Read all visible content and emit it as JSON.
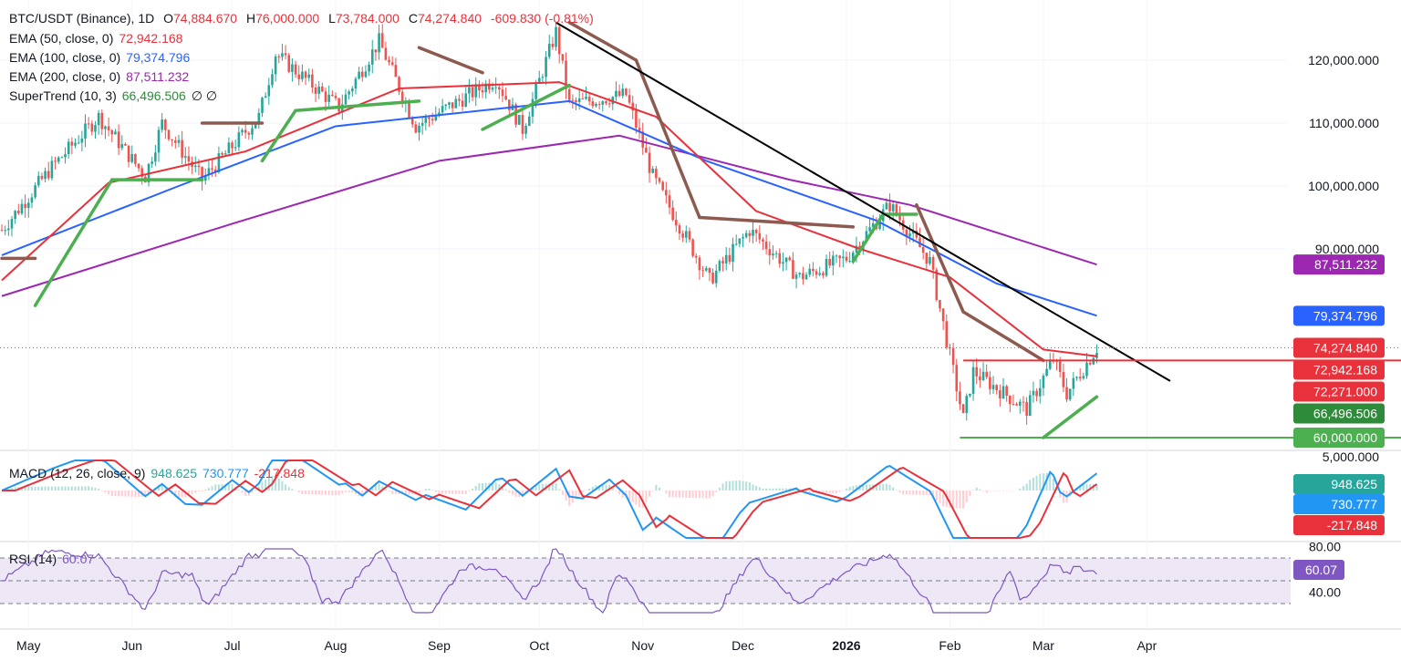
{
  "header": {
    "symbol": "BTC/USDT (Binance), 1D",
    "open_label": "O",
    "open": "74,884.670",
    "high_label": "H",
    "high": "76,000.000",
    "low_label": "L",
    "low": "73,784.000",
    "close_label": "C",
    "close": "74,274.840",
    "change": "-609.830 (-0.81%)"
  },
  "indicators": [
    {
      "label": "EMA (50, close, 0)",
      "value": "72,942.168",
      "color": "#e8313a"
    },
    {
      "label": "EMA (100, close, 0)",
      "value": "79,374.796",
      "color": "#2962ff"
    },
    {
      "label": "EMA (200, close, 0)",
      "value": "87,511.232",
      "color": "#9c27b0"
    },
    {
      "label": "SuperTrend (10, 3)",
      "value": "66,496.506",
      "color": "#2e8b3a",
      "extra": "∅ ∅"
    }
  ],
  "macd": {
    "label": "MACD (12, 26, close, 9)",
    "values": [
      "948.625",
      "730.777",
      "-217.848"
    ],
    "axis_label": "5,000.000"
  },
  "rsi": {
    "label": "RSI (14)",
    "value": "60.07",
    "axis_labels": [
      "80.00",
      "40.00"
    ]
  },
  "colors": {
    "up": "#26a69a",
    "down": "#ef5350",
    "ema50": "#e8313a",
    "ema100": "#2962ff",
    "ema200": "#9c27b0",
    "st_up": "#4caf50",
    "st_down": "#8d5a50",
    "trend": "#000000",
    "rsi": "#7e57c2",
    "rsi_band": "#ede7f6",
    "hline": "#e8313a",
    "support": "#4caf50"
  },
  "chart_data": {
    "type": "candlestick",
    "price_axis": {
      "ticks": [
        120000,
        110000,
        100000,
        90000
      ],
      "tick_labels": [
        "120,000.000",
        "110,000.000",
        "100,000.000",
        "90,000.000"
      ]
    },
    "x_axis": {
      "labels": [
        "May",
        "Jun",
        "Jul",
        "Aug",
        "Sep",
        "Oct",
        "Nov",
        "Dec",
        "2026",
        "Feb",
        "Mar",
        "Apr"
      ]
    },
    "price_tags": [
      {
        "text": "87,511.232",
        "value": 87511.232,
        "color": "#9c27b0"
      },
      {
        "text": "79,374.796",
        "value": 79374.796,
        "color": "#2962ff"
      },
      {
        "text": "74,274.840",
        "value": 74274.84,
        "color": "#e8313a"
      },
      {
        "text": "72,942.168",
        "value": 72942.168,
        "color": "#e8313a"
      },
      {
        "text": "72,271.000",
        "value": 72271,
        "color": "#e8313a"
      },
      {
        "text": "66,496.506",
        "value": 66496.506,
        "color": "#2e8b3a"
      },
      {
        "text": "60,000.000",
        "value": 60000,
        "color": "#4caf50"
      }
    ],
    "macd_tags": [
      {
        "text": "948.625",
        "color": "#26a69a"
      },
      {
        "text": "730.777",
        "color": "#2196f3"
      },
      {
        "text": "-217.848",
        "color": "#e8313a"
      }
    ],
    "rsi_tag": {
      "text": "60.07",
      "color": "#7e57c2"
    },
    "levels": {
      "resistance": 72271,
      "support": 60000,
      "last": 74274.84
    },
    "trendline": {
      "start": {
        "date": "2025-10-06",
        "price": 126000
      },
      "end": {
        "date": "2026-04-08",
        "price": 69000
      }
    },
    "closes": [
      {
        "date": "2025-04-23",
        "close": 93000
      },
      {
        "date": "2025-05-08",
        "close": 103000
      },
      {
        "date": "2025-05-22",
        "close": 111000
      },
      {
        "date": "2025-06-05",
        "close": 101500
      },
      {
        "date": "2025-06-10",
        "close": 110000
      },
      {
        "date": "2025-06-22",
        "close": 101000
      },
      {
        "date": "2025-07-09",
        "close": 111000
      },
      {
        "date": "2025-07-14",
        "close": 121000
      },
      {
        "date": "2025-08-02",
        "close": 112500
      },
      {
        "date": "2025-08-14",
        "close": 123000
      },
      {
        "date": "2025-08-25",
        "close": 109500
      },
      {
        "date": "2025-09-18",
        "close": 117000
      },
      {
        "date": "2025-09-26",
        "close": 109000
      },
      {
        "date": "2025-10-06",
        "close": 124500
      },
      {
        "date": "2025-10-10",
        "close": 113000
      },
      {
        "date": "2025-10-27",
        "close": 114500
      },
      {
        "date": "2025-11-04",
        "close": 101500
      },
      {
        "date": "2025-11-21",
        "close": 85000
      },
      {
        "date": "2025-12-03",
        "close": 93000
      },
      {
        "date": "2025-12-18",
        "close": 85500
      },
      {
        "date": "2026-01-01",
        "close": 88500
      },
      {
        "date": "2026-01-14",
        "close": 97000
      },
      {
        "date": "2026-01-26",
        "close": 88000
      },
      {
        "date": "2026-02-05",
        "close": 63000
      },
      {
        "date": "2026-02-08",
        "close": 70500
      },
      {
        "date": "2026-02-24",
        "close": 64500
      },
      {
        "date": "2026-03-04",
        "close": 72500
      },
      {
        "date": "2026-03-08",
        "close": 67000
      },
      {
        "date": "2026-03-17",
        "close": 74274.84
      }
    ],
    "ema50": [
      {
        "date": "2025-04-23",
        "close": 85000
      },
      {
        "date": "2025-05-25",
        "close": 100500
      },
      {
        "date": "2025-07-05",
        "close": 105500
      },
      {
        "date": "2025-08-20",
        "close": 115500
      },
      {
        "date": "2025-10-07",
        "close": 116500
      },
      {
        "date": "2025-11-05",
        "close": 111000
      },
      {
        "date": "2025-12-05",
        "close": 96000
      },
      {
        "date": "2026-01-05",
        "close": 90000
      },
      {
        "date": "2026-02-01",
        "close": 85500
      },
      {
        "date": "2026-03-01",
        "close": 74000
      },
      {
        "date": "2026-03-17",
        "close": 72942.168
      }
    ],
    "ema100": [
      {
        "date": "2025-04-23",
        "close": 89000
      },
      {
        "date": "2025-06-15",
        "close": 100000
      },
      {
        "date": "2025-08-01",
        "close": 109500
      },
      {
        "date": "2025-10-10",
        "close": 113500
      },
      {
        "date": "2025-11-20",
        "close": 104000
      },
      {
        "date": "2026-01-10",
        "close": 94500
      },
      {
        "date": "2026-02-15",
        "close": 84500
      },
      {
        "date": "2026-03-17",
        "close": 79374.796
      }
    ],
    "ema200": [
      {
        "date": "2025-04-23",
        "close": 82500
      },
      {
        "date": "2025-07-01",
        "close": 94000
      },
      {
        "date": "2025-09-01",
        "close": 104000
      },
      {
        "date": "2025-10-25",
        "close": 108000
      },
      {
        "date": "2025-12-15",
        "close": 101000
      },
      {
        "date": "2026-01-20",
        "close": 97000
      },
      {
        "date": "2026-03-17",
        "close": 87511.232
      }
    ],
    "supertrend": [
      {
        "date": "2025-04-23",
        "value": 88500,
        "trend": "down"
      },
      {
        "date": "2025-05-03",
        "value": 88500,
        "trend": "down"
      },
      {
        "date": "2025-05-03",
        "value": 81000,
        "trend": "up"
      },
      {
        "date": "2025-05-26",
        "value": 101000,
        "trend": "up"
      },
      {
        "date": "2025-06-22",
        "value": 101000,
        "trend": "up"
      },
      {
        "date": "2025-06-22",
        "value": 110000,
        "trend": "down"
      },
      {
        "date": "2025-07-10",
        "value": 110000,
        "trend": "down"
      },
      {
        "date": "2025-07-10",
        "value": 104000,
        "trend": "up"
      },
      {
        "date": "2025-07-20",
        "value": 112000,
        "trend": "up"
      },
      {
        "date": "2025-08-26",
        "value": 113500,
        "trend": "up"
      },
      {
        "date": "2025-08-26",
        "value": 122000,
        "trend": "down"
      },
      {
        "date": "2025-09-14",
        "value": 118000,
        "trend": "down"
      },
      {
        "date": "2025-09-14",
        "value": 109000,
        "trend": "up"
      },
      {
        "date": "2025-10-10",
        "value": 116000,
        "trend": "up"
      },
      {
        "date": "2025-10-10",
        "value": 126000,
        "trend": "down"
      },
      {
        "date": "2025-10-30",
        "value": 120000,
        "trend": "down"
      },
      {
        "date": "2025-11-18",
        "value": 95000,
        "trend": "down"
      },
      {
        "date": "2026-01-03",
        "value": 93500,
        "trend": "down"
      },
      {
        "date": "2026-01-03",
        "value": 88000,
        "trend": "up"
      },
      {
        "date": "2026-01-12",
        "value": 95500,
        "trend": "up"
      },
      {
        "date": "2026-01-22",
        "value": 95500,
        "trend": "up"
      },
      {
        "date": "2026-01-22",
        "value": 97000,
        "trend": "down"
      },
      {
        "date": "2026-02-05",
        "value": 80000,
        "trend": "down"
      },
      {
        "date": "2026-03-01",
        "value": 72271,
        "trend": "down"
      },
      {
        "date": "2026-03-01",
        "value": 60000,
        "trend": "up"
      },
      {
        "date": "2026-03-17",
        "value": 66496.506,
        "trend": "up"
      }
    ]
  }
}
